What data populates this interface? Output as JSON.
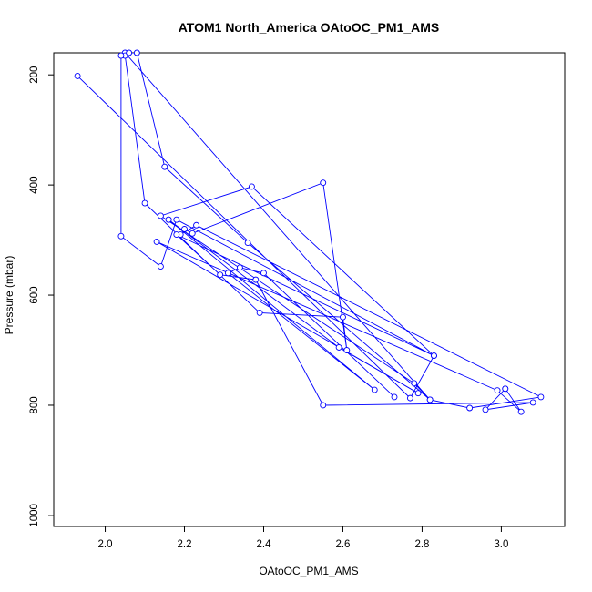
{
  "chart_data": {
    "type": "line",
    "title": "ATOM1 North_America OAtoOC_PM1_AMS",
    "xlabel": "OAtoOC_PM1_AMS",
    "ylabel": "Pressure (mbar)",
    "xlim": [
      1.87,
      3.16
    ],
    "ylim": [
      1020,
      160
    ],
    "y_axis_reversed": true,
    "grid": false,
    "legend": "none",
    "line_color": "#0000ff",
    "marker": "open circle",
    "x_ticks": [
      "2.0",
      "2.2",
      "2.4",
      "2.6",
      "2.8",
      "3.0"
    ],
    "y_ticks": [
      "200",
      "400",
      "600",
      "800",
      "1000"
    ],
    "series": [
      {
        "x": [
          1.93,
          2.77,
          2.83,
          2.37,
          2.14,
          2.78,
          2.82,
          2.05,
          2.08,
          2.15,
          2.36,
          2.82,
          2.92,
          3.1,
          2.23,
          2.19,
          2.2,
          2.22,
          2.55,
          2.61,
          2.6,
          2.39,
          2.1,
          2.05,
          2.06,
          2.04,
          2.04,
          2.14,
          2.18,
          2.83,
          2.18,
          2.29,
          2.38,
          2.55,
          3.08,
          2.96,
          3.01,
          3.01,
          3.05,
          2.99,
          2.13,
          2.79,
          2.59,
          2.16,
          2.16,
          2.68,
          2.31,
          2.34,
          2.4,
          2.73
        ],
        "y": [
          202,
          787,
          710,
          403,
          456,
          760,
          790,
          160,
          160,
          367,
          505,
          790,
          805,
          785,
          473,
          490,
          480,
          488,
          396,
          700,
          640,
          632,
          433,
          165,
          160,
          165,
          493,
          548,
          463,
          710,
          490,
          563,
          572,
          800,
          795,
          808,
          770,
          770,
          812,
          773,
          503,
          778,
          695,
          463,
          463,
          772,
          560,
          550,
          560,
          785
        ]
      }
    ]
  }
}
